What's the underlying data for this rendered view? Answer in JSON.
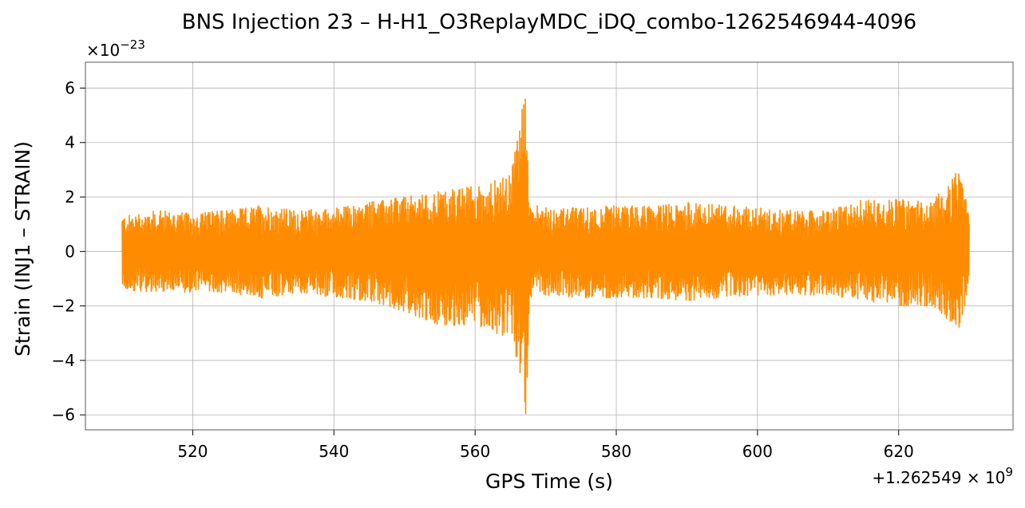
{
  "chart_data": {
    "type": "line",
    "title": "BNS Injection 23 – H-H1_O3ReplayMDC_iDQ_combo-1262546944-4096",
    "xlabel": "GPS Time (s)",
    "ylabel": "Strain (INJ1 – STRAIN)",
    "x_offset_label": "+1.262549 × 10",
    "x_offset_exp": "9",
    "y_scale_label": "×10",
    "y_scale_exp": "−23",
    "xlim": [
      1262549504.8,
      1262549636.2
    ],
    "ylim": [
      -6.55e-23,
      6.95e-23
    ],
    "xticks": [
      1262549520,
      1262549540,
      1262549560,
      1262549580,
      1262549600,
      1262549620
    ],
    "xtick_labels": [
      "520",
      "540",
      "560",
      "580",
      "600",
      "620"
    ],
    "yticks": [
      -6e-23,
      -4e-23,
      -2e-23,
      0,
      2e-23,
      4e-23,
      6e-23
    ],
    "ytick_labels": [
      "−6",
      "−4",
      "−2",
      "0",
      "2",
      "4",
      "6"
    ],
    "grid": true,
    "series": [
      {
        "color": "#ff8c00",
        "x_start": 1262549510,
        "x_end": 1262549630,
        "envelope_x": [
          1262549510,
          1262549515,
          1262549520,
          1262549525,
          1262549530,
          1262549535,
          1262549540,
          1262549545,
          1262549550,
          1262549555,
          1262549560,
          1262549565,
          1262549567.2,
          1262549567.8,
          1262549568.5,
          1262549570,
          1262549575,
          1262549580,
          1262549585,
          1262549590,
          1262549595,
          1262549600,
          1262549605,
          1262549610,
          1262549615,
          1262549620,
          1262549625,
          1262549628.5,
          1262549630
        ],
        "envelope_upper": [
          1.3e-23,
          1.5e-23,
          1.4e-23,
          1.5e-23,
          1.7e-23,
          1.5e-23,
          1.6e-23,
          1.8e-23,
          2e-23,
          2.2e-23,
          2.4e-23,
          2.8e-23,
          6.3e-23,
          1.5e-23,
          1.7e-23,
          1.6e-23,
          1.6e-23,
          1.7e-23,
          1.7e-23,
          1.8e-23,
          1.7e-23,
          1.6e-23,
          1.5e-23,
          1.5e-23,
          1.9e-23,
          1.9e-23,
          1.9e-23,
          3e-23,
          1.4e-23
        ],
        "envelope_lower": [
          -1.4e-23,
          -1.5e-23,
          -1.5e-23,
          -1.5e-23,
          -1.7e-23,
          -1.5e-23,
          -1.7e-23,
          -1.8e-23,
          -2.2e-23,
          -2.7e-23,
          -2.7e-23,
          -3.2e-23,
          -6e-23,
          -1.7e-23,
          -1.6e-23,
          -1.6e-23,
          -1.7e-23,
          -1.7e-23,
          -1.7e-23,
          -1.8e-23,
          -1.7e-23,
          -1.6e-23,
          -1.6e-23,
          -1.6e-23,
          -1.8e-23,
          -2e-23,
          -2e-23,
          -3e-23,
          -1.4e-23
        ]
      }
    ]
  }
}
